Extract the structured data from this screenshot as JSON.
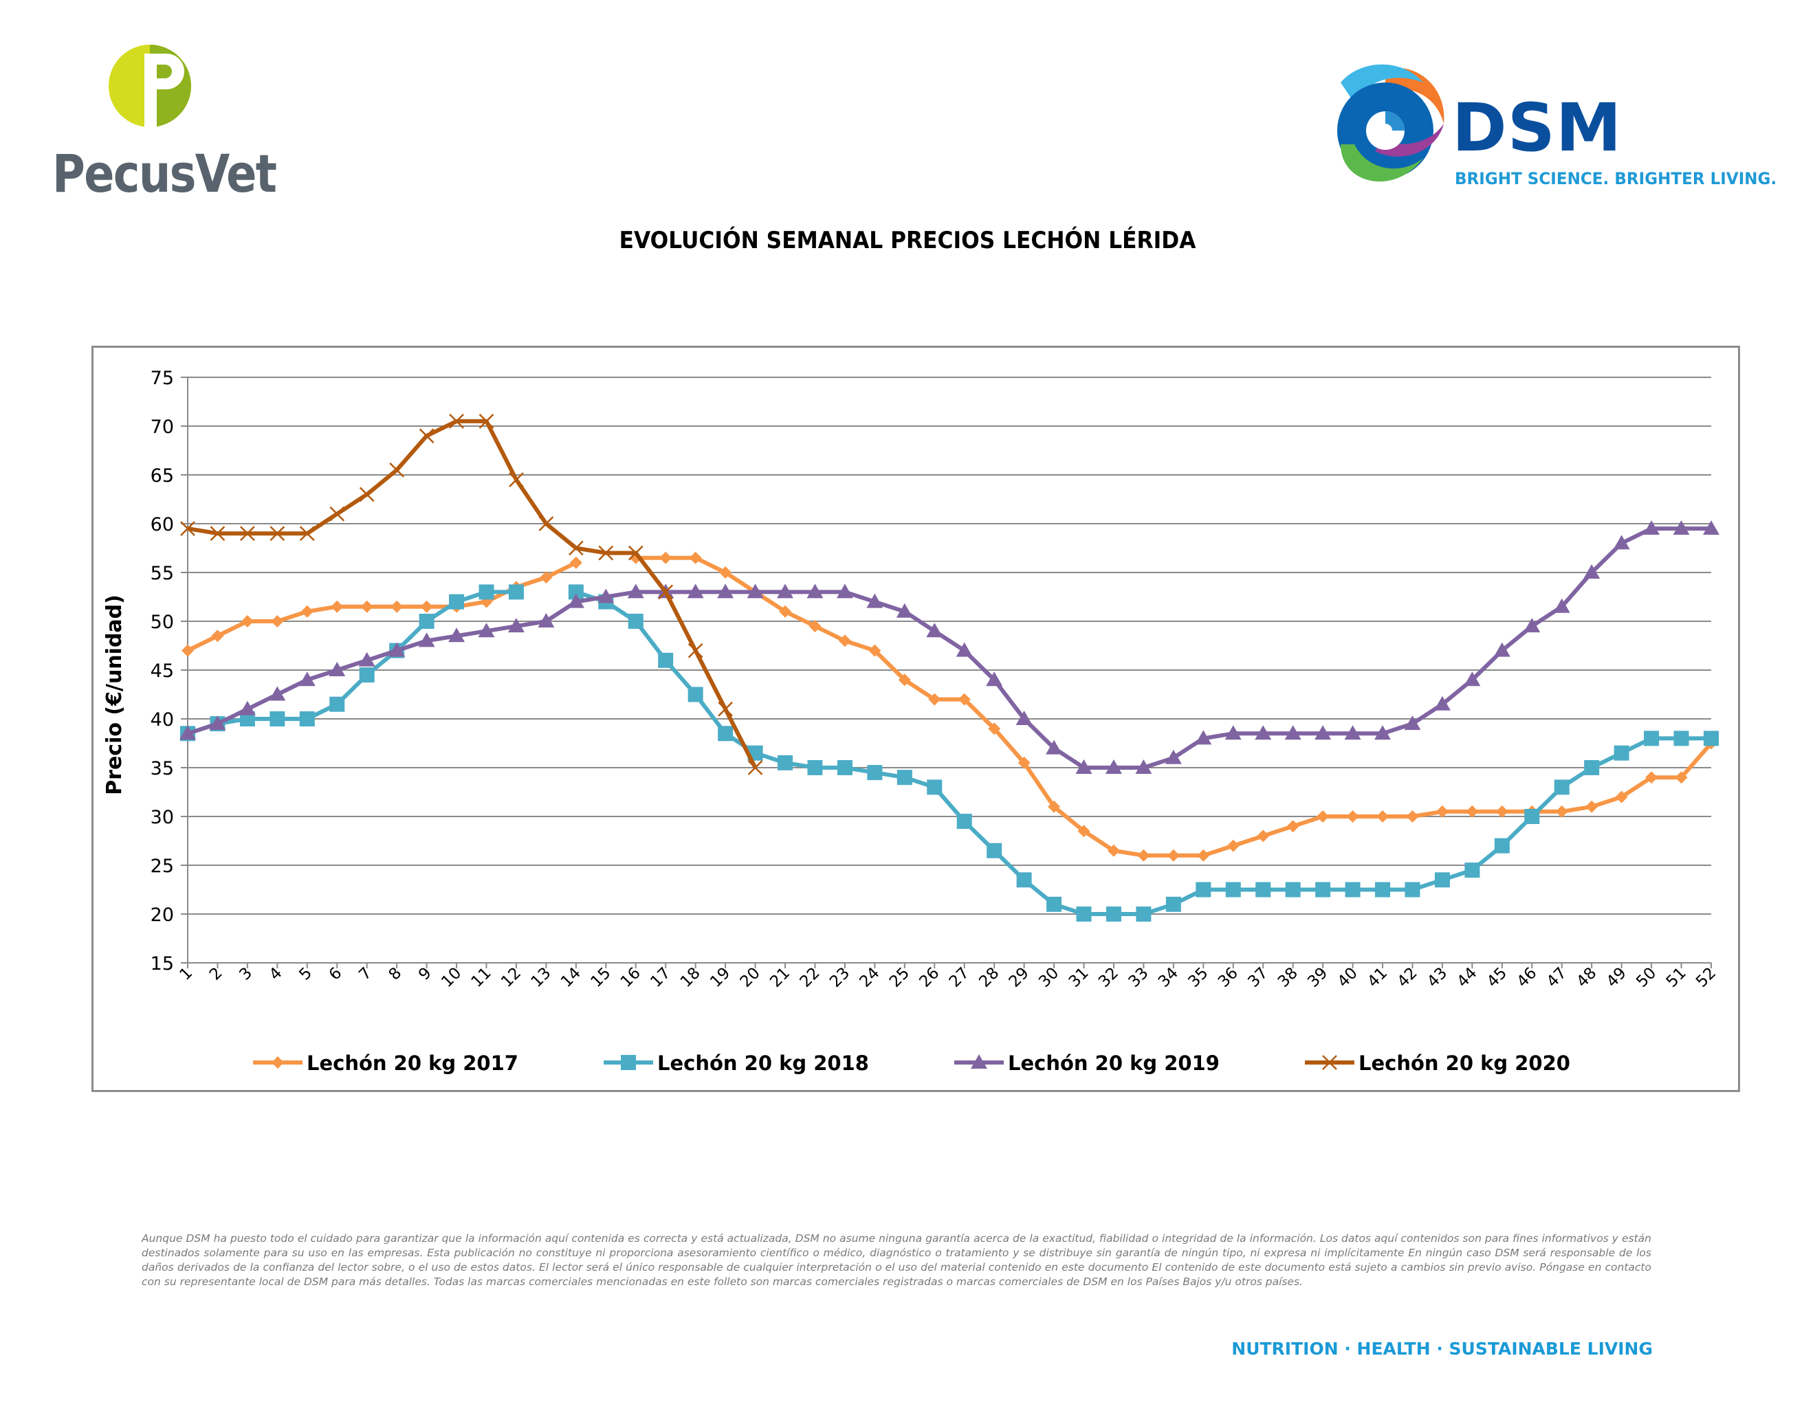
{
  "logos": {
    "pecusvet": "PecusVet",
    "dsm": "DSM",
    "dsm_tagline": "BRIGHT SCIENCE. BRIGHTER LIVING."
  },
  "colors": {
    "pecus_green": "#a9c72a",
    "pecus_gray": "#58636d",
    "dsm_blue": "#0a4f9e",
    "dsm_light_blue": "#1f9ad6"
  },
  "footer": "NUTRITION · HEALTH · SUSTAINABLE LIVING",
  "disclaimer": "Aunque DSM ha puesto todo el cuidado para garantizar que la información aquí contenida es correcta y está actualizada, DSM no asume ninguna garantía acerca de la exactitud, fiabilidad o integridad de la información. Los datos aquí contenidos son para fines informativos y están destinados solamente para su uso en las empresas. Esta publicación no constituye ni proporciona asesoramiento científico o médico, diagnóstico o tratamiento y se distribuye sin garantía de ningún tipo, ni expresa ni implícitamente En ningún caso DSM será responsable de los daños derivados de la confianza del lector sobre, o el uso de estos datos. El lector será el único responsable de cualquier interpretación o el uso del material contenido en este documento El contenido de este documento está sujeto a cambios sin previo aviso. Póngase en contacto con su representante local de DSM para más detalles. Todas las marcas comerciales mencionadas en este folleto son marcas comerciales registradas o marcas comerciales de DSM en los Países Bajos y/u otros países.",
  "chart_data": {
    "type": "line",
    "title": "EVOLUCIÓN SEMANAL PRECIOS LECHÓN LÉRIDA",
    "xlabel": "",
    "ylabel": "Precio (€/unidad)",
    "ylim": [
      15,
      75
    ],
    "yticks": [
      15,
      20,
      25,
      30,
      35,
      40,
      45,
      50,
      55,
      60,
      65,
      70,
      75
    ],
    "x": [
      1,
      2,
      3,
      4,
      5,
      6,
      7,
      8,
      9,
      10,
      11,
      12,
      13,
      14,
      15,
      16,
      17,
      18,
      19,
      20,
      21,
      22,
      23,
      24,
      25,
      26,
      27,
      28,
      29,
      30,
      31,
      32,
      33,
      34,
      35,
      36,
      37,
      38,
      39,
      40,
      41,
      42,
      43,
      44,
      45,
      46,
      47,
      48,
      49,
      50,
      51,
      52
    ],
    "grid": true,
    "legend_position": "bottom",
    "series": [
      {
        "name": "Lechón 20 kg 2017",
        "color": "#f79646",
        "marker": "diamond",
        "values": [
          47,
          48.5,
          50,
          50,
          51,
          51.5,
          51.5,
          51.5,
          51.5,
          51.5,
          52,
          53.5,
          54.5,
          56,
          null,
          56.5,
          56.5,
          56.5,
          55,
          53,
          51,
          49.5,
          48,
          47,
          44,
          42,
          42,
          39,
          35.5,
          31,
          28.5,
          26.5,
          26,
          26,
          26,
          27,
          28,
          29,
          30,
          30,
          30,
          30,
          30.5,
          30.5,
          30.5,
          30.5,
          30.5,
          31,
          32,
          34,
          34,
          37.5
        ]
      },
      {
        "name": "Lechón 20 kg 2018",
        "color": "#4bacc6",
        "marker": "square",
        "values": [
          38.5,
          39.5,
          40,
          40,
          40,
          41.5,
          44.5,
          47,
          50,
          52,
          53,
          53,
          null,
          53,
          52,
          50,
          46,
          42.5,
          38.5,
          36.5,
          35.5,
          35,
          35,
          34.5,
          34,
          33,
          29.5,
          26.5,
          23.5,
          21,
          20,
          20,
          20,
          21,
          22.5,
          22.5,
          22.5,
          22.5,
          22.5,
          22.5,
          22.5,
          22.5,
          23.5,
          24.5,
          27,
          30,
          33,
          35,
          36.5,
          38,
          38,
          38
        ]
      },
      {
        "name": "Lechón 20 kg 2019",
        "color": "#8064a2",
        "marker": "triangle",
        "values": [
          38.5,
          39.5,
          41,
          42.5,
          44,
          45,
          46,
          47,
          48,
          48.5,
          49,
          49.5,
          50,
          52,
          52.5,
          53,
          53,
          53,
          53,
          53,
          53,
          53,
          53,
          52,
          51,
          49,
          47,
          44,
          40,
          37,
          35,
          35,
          35,
          36,
          38,
          38.5,
          38.5,
          38.5,
          38.5,
          38.5,
          38.5,
          39.5,
          41.5,
          44,
          47,
          49.5,
          51.5,
          55,
          58,
          59.5,
          59.5,
          59.5
        ]
      },
      {
        "name": "Lechón 20 kg 2020",
        "color": "#b45a0e",
        "marker": "x",
        "values": [
          59.5,
          59,
          59,
          59,
          59,
          61,
          63,
          65.5,
          69,
          70.5,
          70.5,
          64.5,
          60,
          57.5,
          57,
          57,
          53,
          47,
          41,
          35,
          null,
          null,
          null,
          null,
          null,
          null,
          null,
          null,
          null,
          null,
          null,
          null,
          null,
          null,
          null,
          null,
          null,
          null,
          null,
          null,
          null,
          null,
          null,
          null,
          null,
          null,
          null,
          null,
          null,
          null,
          null,
          null
        ]
      }
    ]
  }
}
